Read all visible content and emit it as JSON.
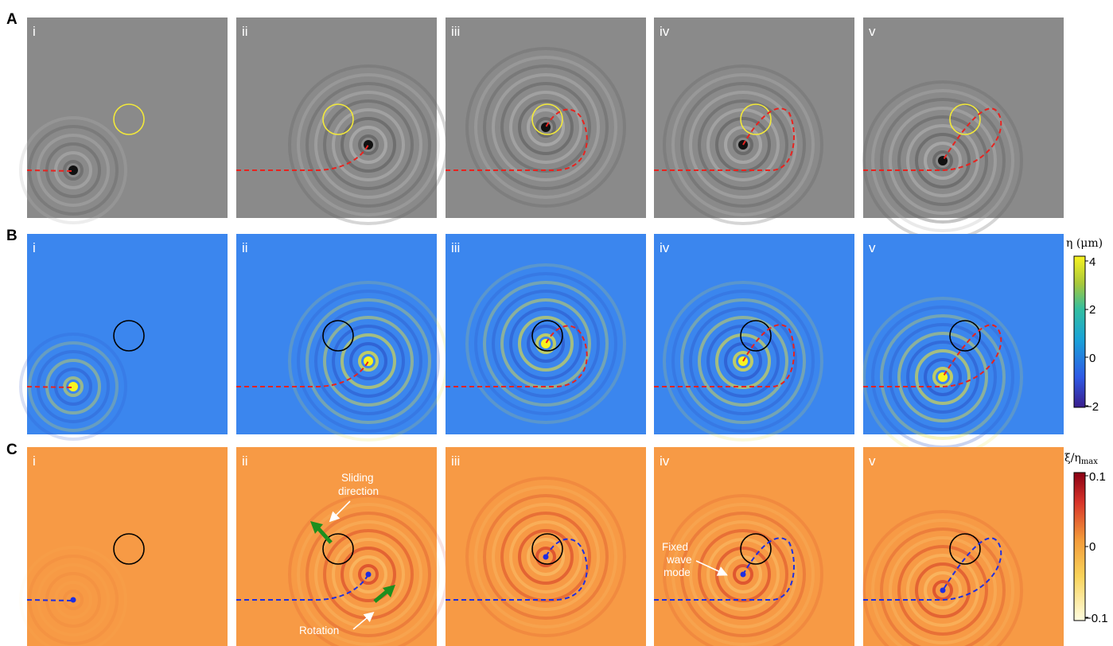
{
  "rows": [
    {
      "label": "A",
      "style": "gray"
    },
    {
      "label": "B",
      "style": "blue"
    },
    {
      "label": "C",
      "style": "orange"
    }
  ],
  "panel_labels": [
    "i",
    "ii",
    "iii",
    "iv",
    "v"
  ],
  "colorbar_B": {
    "label": "η (μm)",
    "ticks": [
      "4",
      "2",
      "0",
      "−2"
    ]
  },
  "colorbar_C": {
    "label": "ξ/η",
    "label_sub": "max",
    "ticks": [
      "0.1",
      "0",
      "−0.1"
    ]
  },
  "annotations": {
    "sliding": [
      "Sliding",
      "direction"
    ],
    "rotation": "Rotation",
    "fixed": [
      "Fixed",
      "wave",
      "mode"
    ]
  },
  "colors": {
    "gray_bg": "#8a8a8a",
    "blue_bg": "#3b86ee",
    "orange_bg": "#f79a45",
    "trajectory_red": "#e8231f",
    "trajectory_blue": "#1f2fe0",
    "obstacle_yellow": "#f2e83a",
    "arrow_green": "#1e8f1e"
  }
}
